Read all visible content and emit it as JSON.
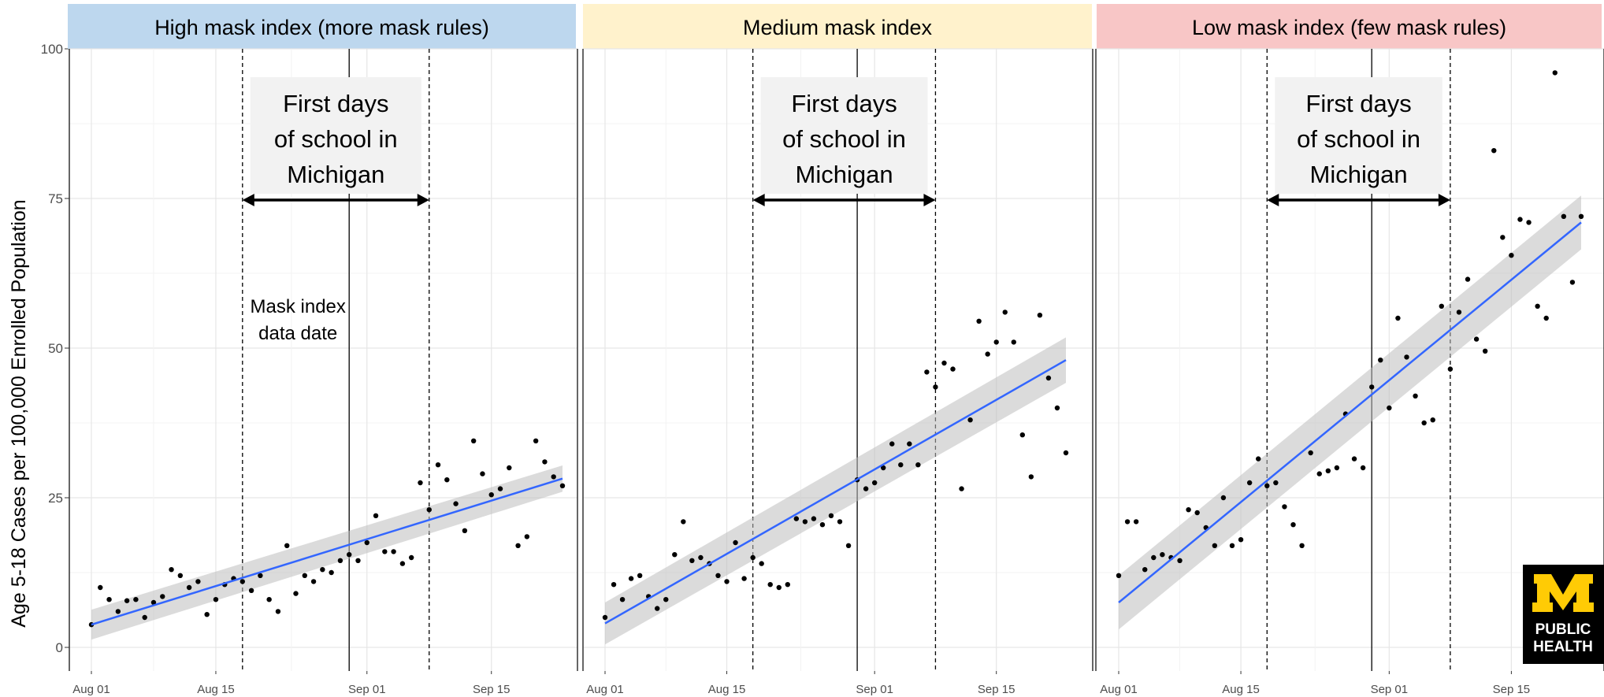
{
  "y_axis_label": "Age 5-18 Cases per 100,000 Enrolled Population",
  "logo": {
    "letter": "M",
    "text": "PUBLIC HEALTH",
    "letter_color": "#FFCB05",
    "text_color": "#FFFFFF",
    "background": "#000000"
  },
  "annotations": {
    "school_box": [
      "First days",
      "of school in",
      "Michigan"
    ],
    "data_date": [
      "Mask index",
      "data date"
    ]
  },
  "chart_data": [
    {
      "type": "scatter",
      "title": "High mask index (more mask rules)",
      "header_color": "#BDD7EE",
      "ylim": [
        0,
        100
      ],
      "yticks": [
        0,
        25,
        50,
        75,
        100
      ],
      "xlim": [
        -1,
        57
      ],
      "xticks": [
        0,
        14,
        31,
        45
      ],
      "xtick_labels": [
        "Aug 01",
        "Aug 15",
        "Sep 01",
        "Sep 15"
      ],
      "vlines": {
        "school_start": 17,
        "data_date": 29,
        "school_end": 38
      },
      "trend": {
        "color": "#3366FF",
        "x": [
          0,
          53
        ],
        "y": [
          3.8,
          28.2
        ],
        "band": [
          2.5,
          2.2
        ]
      },
      "points": [
        [
          0,
          3.8
        ],
        [
          1,
          10
        ],
        [
          2,
          8
        ],
        [
          3,
          6
        ],
        [
          4,
          7.8
        ],
        [
          5,
          8
        ],
        [
          6,
          5
        ],
        [
          7,
          7.5
        ],
        [
          8,
          8.5
        ],
        [
          9,
          13
        ],
        [
          10,
          12
        ],
        [
          11,
          10
        ],
        [
          12,
          11
        ],
        [
          13,
          5.5
        ],
        [
          14,
          8
        ],
        [
          15,
          10.5
        ],
        [
          16,
          11.5
        ],
        [
          17,
          11
        ],
        [
          18,
          9.5
        ],
        [
          19,
          12
        ],
        [
          20,
          8
        ],
        [
          21,
          6
        ],
        [
          22,
          17
        ],
        [
          23,
          9
        ],
        [
          24,
          12
        ],
        [
          25,
          11
        ],
        [
          26,
          13
        ],
        [
          27,
          12.5
        ],
        [
          28,
          14.5
        ],
        [
          29,
          15.5
        ],
        [
          30,
          14.5
        ],
        [
          31,
          17.5
        ],
        [
          32,
          22
        ],
        [
          33,
          16
        ],
        [
          34,
          16
        ],
        [
          35,
          14
        ],
        [
          36,
          15
        ],
        [
          37,
          27.5
        ],
        [
          38,
          23
        ],
        [
          39,
          30.5
        ],
        [
          40,
          28
        ],
        [
          41,
          24
        ],
        [
          42,
          19.5
        ],
        [
          43,
          34.5
        ],
        [
          44,
          29
        ],
        [
          45,
          25.5
        ],
        [
          46,
          26.5
        ],
        [
          47,
          30
        ],
        [
          48,
          17
        ],
        [
          49,
          18.5
        ],
        [
          50,
          34.5
        ],
        [
          51,
          31
        ],
        [
          52,
          28.5
        ],
        [
          53,
          27
        ]
      ]
    },
    {
      "type": "scatter",
      "title": "Medium mask index",
      "header_color": "#FFF2CC",
      "ylim": [
        0,
        100
      ],
      "yticks": [
        0,
        25,
        50,
        75,
        100
      ],
      "xlim": [
        -1,
        54
      ],
      "xticks": [
        0,
        14,
        31,
        45
      ],
      "xtick_labels": [
        "Aug 01",
        "Aug 15",
        "Sep 01",
        "Sep 15"
      ],
      "vlines": {
        "school_start": 17,
        "data_date": 29,
        "school_end": 38
      },
      "trend": {
        "color": "#3366FF",
        "x": [
          0,
          53
        ],
        "y": [
          4,
          48
        ],
        "band": [
          3.5,
          3.8
        ]
      },
      "points": [
        [
          0,
          5
        ],
        [
          1,
          10.5
        ],
        [
          2,
          8
        ],
        [
          3,
          11.5
        ],
        [
          4,
          12
        ],
        [
          5,
          8.5
        ],
        [
          6,
          6.5
        ],
        [
          7,
          8
        ],
        [
          8,
          15.5
        ],
        [
          9,
          21
        ],
        [
          10,
          14.5
        ],
        [
          11,
          15
        ],
        [
          12,
          14
        ],
        [
          13,
          12
        ],
        [
          14,
          11
        ],
        [
          15,
          17.5
        ],
        [
          16,
          11.5
        ],
        [
          17,
          15
        ],
        [
          18,
          14
        ],
        [
          19,
          10.5
        ],
        [
          20,
          10
        ],
        [
          21,
          10.5
        ],
        [
          22,
          21.5
        ],
        [
          23,
          21
        ],
        [
          24,
          21.5
        ],
        [
          25,
          20.5
        ],
        [
          26,
          22
        ],
        [
          27,
          21
        ],
        [
          28,
          17
        ],
        [
          29,
          28
        ],
        [
          30,
          26.5
        ],
        [
          31,
          27.5
        ],
        [
          32,
          30
        ],
        [
          33,
          34
        ],
        [
          34,
          30.5
        ],
        [
          35,
          34
        ],
        [
          36,
          30.5
        ],
        [
          37,
          46
        ],
        [
          38,
          43.5
        ],
        [
          39,
          47.5
        ],
        [
          40,
          46.5
        ],
        [
          41,
          26.5
        ],
        [
          42,
          38
        ],
        [
          43,
          54.5
        ],
        [
          44,
          49
        ],
        [
          45,
          51
        ],
        [
          46,
          56
        ],
        [
          47,
          51
        ],
        [
          48,
          35.5
        ],
        [
          49,
          28.5
        ],
        [
          50,
          55.5
        ],
        [
          51,
          45
        ],
        [
          52,
          40
        ],
        [
          53,
          32.5
        ]
      ]
    },
    {
      "type": "scatter",
      "title": "Low mask index (few mask rules)",
      "header_color": "#F8C6C6",
      "ylim": [
        0,
        100
      ],
      "yticks": [
        0,
        25,
        50,
        75,
        100
      ],
      "xlim": [
        -1,
        54
      ],
      "xticks": [
        0,
        14,
        31,
        45
      ],
      "xtick_labels": [
        "Aug 01",
        "Aug 15",
        "Sep 01",
        "Sep 15"
      ],
      "vlines": {
        "school_start": 17,
        "data_date": 29,
        "school_end": 38
      },
      "trend": {
        "color": "#3366FF",
        "x": [
          0,
          53
        ],
        "y": [
          7.5,
          71
        ],
        "band": [
          4.5,
          4.5
        ]
      },
      "points": [
        [
          0,
          12
        ],
        [
          1,
          21
        ],
        [
          2,
          21
        ],
        [
          3,
          13
        ],
        [
          4,
          15
        ],
        [
          5,
          15.5
        ],
        [
          6,
          15
        ],
        [
          7,
          14.5
        ],
        [
          8,
          23
        ],
        [
          9,
          22.5
        ],
        [
          10,
          20
        ],
        [
          11,
          17
        ],
        [
          12,
          25
        ],
        [
          13,
          17
        ],
        [
          14,
          18
        ],
        [
          15,
          27.5
        ],
        [
          16,
          31.5
        ],
        [
          17,
          27
        ],
        [
          18,
          27.5
        ],
        [
          19,
          23.5
        ],
        [
          20,
          20.5
        ],
        [
          21,
          17
        ],
        [
          22,
          32.5
        ],
        [
          23,
          29
        ],
        [
          24,
          29.5
        ],
        [
          25,
          30
        ],
        [
          26,
          39
        ],
        [
          27,
          31.5
        ],
        [
          28,
          30
        ],
        [
          29,
          43.5
        ],
        [
          30,
          48
        ],
        [
          31,
          40
        ],
        [
          32,
          55
        ],
        [
          33,
          48.5
        ],
        [
          34,
          42
        ],
        [
          35,
          37.5
        ],
        [
          36,
          38
        ],
        [
          37,
          57
        ],
        [
          38,
          46.5
        ],
        [
          39,
          56
        ],
        [
          40,
          61.5
        ],
        [
          41,
          51.5
        ],
        [
          42,
          49.5
        ],
        [
          43,
          83
        ],
        [
          44,
          68.5
        ],
        [
          45,
          65.5
        ],
        [
          46,
          71.5
        ],
        [
          47,
          71
        ],
        [
          48,
          57
        ],
        [
          49,
          55
        ],
        [
          50,
          96
        ],
        [
          51,
          72
        ],
        [
          52,
          61
        ],
        [
          53,
          72
        ]
      ]
    }
  ]
}
